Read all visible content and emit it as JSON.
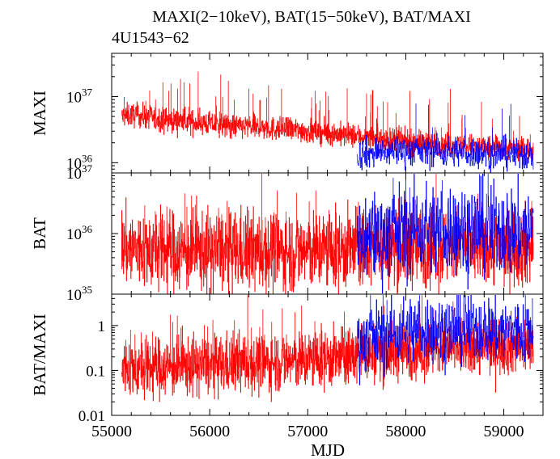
{
  "title": "MAXI(2−10keV), BAT(15−50keV), BAT/MAXI",
  "subtitle": "4U1543−62",
  "colors": {
    "red_series": "#ff0000",
    "blue_series": "#0000ff",
    "axis": "#000000"
  },
  "chart_data": [
    {
      "type": "line",
      "panel": "MAXI",
      "ylabel": "MAXI",
      "yscale": "log",
      "ylim": [
        7e+35,
        4.5e+37
      ],
      "yticks": [
        {
          "value": 1e+36,
          "base": "10",
          "exp": "36"
        },
        {
          "value": 1e+37,
          "base": "10",
          "exp": "37"
        }
      ],
      "xlim": [
        55000,
        59400
      ],
      "series": [
        {
          "color": "red",
          "x": [
            55100,
            55200,
            55300,
            55400,
            55500,
            55600,
            55700,
            55800,
            55900,
            56000,
            56100,
            56200,
            56300,
            56400,
            56500,
            56600,
            56700,
            56800,
            56900,
            57000,
            57100,
            57200,
            57300,
            57400,
            57500,
            57600,
            57700,
            57800,
            57900,
            58000,
            58100,
            58200,
            58300,
            58400,
            58500,
            58600,
            58700,
            58800,
            58900,
            59000,
            59100,
            59200,
            59300
          ],
          "y": [
            5e+36,
            5.3e+36,
            5.1e+36,
            4.8e+36,
            4.6e+36,
            4.4e+36,
            4.3e+36,
            4.1e+36,
            4e+36,
            3.9e+36,
            3.7e+36,
            3.6e+36,
            3.5e+36,
            3.5e+36,
            3.4e+36,
            3.3e+36,
            3.2e+36,
            3.2e+36,
            3.1e+36,
            3e+36,
            2.9e+36,
            2.8e+36,
            2.7e+36,
            2.6e+36,
            2.5e+36,
            2.4e+36,
            2.3e+36,
            2.2e+36,
            2.1e+36,
            2.1e+36,
            2e+36,
            2e+36,
            1.9e+36,
            1.9e+36,
            1.8e+36,
            1.8e+36,
            1.8e+36,
            1.7e+36,
            1.7e+36,
            1.7e+36,
            1.6e+36,
            1.6e+36,
            1.6e+36
          ]
        },
        {
          "color": "blue",
          "x": [
            57500,
            57600,
            57700,
            57800,
            57900,
            58000,
            58100,
            58200,
            58300,
            58400,
            58500,
            58600,
            58700,
            58800,
            58900,
            59000,
            59100,
            59200,
            59300
          ],
          "y": [
            1.3e+36,
            1.4e+36,
            1.4e+36,
            1.5e+36,
            1.5e+36,
            1.6e+36,
            1.5e+36,
            1.5e+36,
            1.5e+36,
            1.4e+36,
            1.5e+36,
            1.4e+36,
            1.4e+36,
            1.4e+36,
            1.3e+36,
            1.4e+36,
            1.3e+36,
            1.3e+36,
            1.3e+36
          ]
        }
      ]
    },
    {
      "type": "line",
      "panel": "BAT",
      "ylabel": "BAT",
      "yscale": "log",
      "ylim": [
        1e+35,
        1e+37
      ],
      "yticks": [
        {
          "value": 1e+35,
          "base": "10",
          "exp": "35"
        },
        {
          "value": 1e+36,
          "base": "10",
          "exp": "36"
        },
        {
          "value": 1e+37,
          "base": "10",
          "exp": "37"
        }
      ],
      "xlim": [
        55000,
        59400
      ],
      "series": [
        {
          "color": "red",
          "x": [
            55100,
            55300,
            55500,
            55700,
            55900,
            56100,
            56300,
            56500,
            56700,
            56900,
            57100,
            57300,
            57500,
            57700,
            57900,
            58100,
            58300,
            58500,
            58700,
            58900,
            59100,
            59300
          ],
          "y": [
            6e+35,
            5.5e+35,
            5.5e+35,
            5e+35,
            5.2e+35,
            5e+35,
            5.3e+35,
            5e+35,
            5.2e+35,
            5e+35,
            5.4e+35,
            5.2e+35,
            5.8e+35,
            6e+35,
            6.3e+35,
            6.2e+35,
            6e+35,
            6.5e+35,
            6.3e+35,
            6.2e+35,
            6e+35,
            6.2e+35
          ]
        },
        {
          "color": "blue",
          "x": [
            57500,
            57700,
            57900,
            58100,
            58300,
            58500,
            58700,
            58900,
            59100,
            59300
          ],
          "y": [
            8e+35,
            1e+36,
            1.1e+36,
            1.3e+36,
            1.2e+36,
            1.2e+36,
            1.3e+36,
            1.2e+36,
            1.1e+36,
            1.2e+36
          ]
        }
      ]
    },
    {
      "type": "line",
      "panel": "BAT/MAXI",
      "ylabel": "BAT/MAXI",
      "yscale": "log",
      "ylim": [
        0.01,
        5.0
      ],
      "yticks": [
        {
          "value": 0.01,
          "label": "0.01"
        },
        {
          "value": 0.1,
          "label": "0.1"
        },
        {
          "value": 1,
          "label": "1"
        }
      ],
      "xlim": [
        55000,
        59400
      ],
      "xlabel": "MJD",
      "xticks": [
        55000,
        56000,
        57000,
        58000,
        59000
      ],
      "series": [
        {
          "color": "red",
          "x": [
            55100,
            55300,
            55500,
            55700,
            55900,
            56100,
            56300,
            56500,
            56700,
            56900,
            57100,
            57300,
            57500,
            57700,
            57900,
            58100,
            58300,
            58500,
            58700,
            58900,
            59100,
            59300
          ],
          "y": [
            0.12,
            0.11,
            0.12,
            0.12,
            0.13,
            0.13,
            0.15,
            0.14,
            0.16,
            0.16,
            0.18,
            0.19,
            0.22,
            0.25,
            0.28,
            0.3,
            0.32,
            0.34,
            0.35,
            0.36,
            0.37,
            0.38
          ]
        },
        {
          "color": "blue",
          "x": [
            57500,
            57700,
            57900,
            58100,
            58300,
            58500,
            58700,
            58900,
            59100,
            59300
          ],
          "y": [
            0.45,
            0.6,
            0.7,
            0.85,
            0.8,
            0.85,
            0.9,
            0.8,
            0.75,
            0.8
          ]
        }
      ]
    }
  ]
}
